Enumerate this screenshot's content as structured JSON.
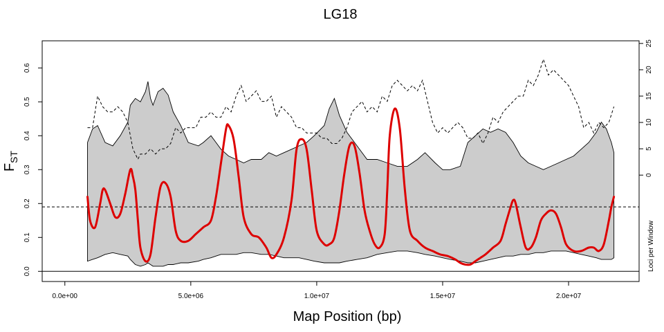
{
  "chart_data": {
    "type": "line",
    "title": "LG18",
    "xlabel": "Map Position (bp)",
    "ylabel": "F",
    "ylabel_subscript": "ST",
    "y2label": "Loci per Window",
    "xlim": [
      -900000,
      22800000
    ],
    "ylim": [
      -0.03,
      0.68
    ],
    "y2lim": [
      -20.2,
      25.5
    ],
    "x_ticks": [
      0,
      5000000,
      10000000,
      15000000,
      20000000
    ],
    "x_tick_labels": [
      "0.0e+00",
      "5.0e+06",
      "1.0e+07",
      "1.5e+07",
      "2.0e+07"
    ],
    "y_ticks": [
      0,
      0.1,
      0.2,
      0.3,
      0.4,
      0.5,
      0.6
    ],
    "y_tick_labels": [
      "0.0",
      "0.1",
      "0.2",
      "0.3",
      "0.4",
      "0.5",
      "0.6"
    ],
    "y2_ticks": [
      0,
      5,
      10,
      15,
      20,
      25
    ],
    "y2_tick_labels": [
      "0",
      "5",
      "10",
      "15",
      "20",
      "25"
    ],
    "reference_lines": [
      {
        "axis": "y",
        "value": 0.19,
        "style": "dashed"
      },
      {
        "axis": "y",
        "value": 0,
        "style": "solid"
      }
    ],
    "grid": false,
    "series": [
      {
        "role": "confidence_band",
        "color": "#cccccc",
        "x": [
          900000,
          1100000,
          1300000,
          1600000,
          1900000,
          2200000,
          2500000,
          2600000,
          2800000,
          3000000,
          3200000,
          3300000,
          3400000,
          3500000,
          3700000,
          3900000,
          4100000,
          4300000,
          4600000,
          4900000,
          5300000,
          5500000,
          5800000,
          6000000,
          6200000,
          6500000,
          6800000,
          7100000,
          7400000,
          7800000,
          8100000,
          8400000,
          8700000,
          9000000,
          9300000,
          9600000,
          9900000,
          10300000,
          10500000,
          10700000,
          10900000,
          11200000,
          11600000,
          12000000,
          12400000,
          12800000,
          13200000,
          13600000,
          14000000,
          14300000,
          14700000,
          15000000,
          15300000,
          15700000,
          16000000,
          16300000,
          16600000,
          16900000,
          17200000,
          17500000,
          17800000,
          18100000,
          18400000,
          18700000,
          19000000,
          19300000,
          19600000,
          19900000,
          20200000,
          20500000,
          20800000,
          21100000,
          21300000,
          21500000,
          21700000,
          21800000
        ],
        "upper": [
          0.38,
          0.42,
          0.43,
          0.38,
          0.37,
          0.4,
          0.44,
          0.49,
          0.51,
          0.5,
          0.53,
          0.56,
          0.51,
          0.49,
          0.53,
          0.54,
          0.52,
          0.47,
          0.43,
          0.38,
          0.37,
          0.38,
          0.4,
          0.38,
          0.36,
          0.34,
          0.33,
          0.32,
          0.33,
          0.33,
          0.35,
          0.34,
          0.35,
          0.36,
          0.37,
          0.38,
          0.4,
          0.43,
          0.48,
          0.51,
          0.46,
          0.41,
          0.37,
          0.33,
          0.33,
          0.32,
          0.31,
          0.31,
          0.33,
          0.35,
          0.32,
          0.3,
          0.3,
          0.31,
          0.38,
          0.4,
          0.42,
          0.41,
          0.42,
          0.41,
          0.38,
          0.34,
          0.32,
          0.31,
          0.3,
          0.31,
          0.32,
          0.33,
          0.34,
          0.36,
          0.38,
          0.41,
          0.44,
          0.42,
          0.38,
          0.35
        ],
        "lower": [
          0.03,
          0.035,
          0.04,
          0.05,
          0.055,
          0.05,
          0.045,
          0.035,
          0.02,
          0.015,
          0.02,
          0.025,
          0.02,
          0.015,
          0.015,
          0.015,
          0.02,
          0.02,
          0.025,
          0.025,
          0.03,
          0.035,
          0.04,
          0.045,
          0.05,
          0.05,
          0.05,
          0.055,
          0.055,
          0.05,
          0.05,
          0.045,
          0.04,
          0.04,
          0.04,
          0.035,
          0.03,
          0.025,
          0.025,
          0.025,
          0.025,
          0.03,
          0.035,
          0.04,
          0.05,
          0.055,
          0.06,
          0.06,
          0.055,
          0.05,
          0.045,
          0.04,
          0.035,
          0.03,
          0.025,
          0.025,
          0.03,
          0.035,
          0.04,
          0.045,
          0.045,
          0.05,
          0.05,
          0.055,
          0.055,
          0.06,
          0.06,
          0.06,
          0.055,
          0.05,
          0.045,
          0.04,
          0.035,
          0.035,
          0.035,
          0.04
        ]
      },
      {
        "role": "fst",
        "color": "#dd0000",
        "x": [
          900000,
          1000000,
          1200000,
          1400000,
          1500000,
          1600000,
          1800000,
          2000000,
          2200000,
          2400000,
          2600000,
          2700000,
          2800000,
          2900000,
          3000000,
          3200000,
          3400000,
          3600000,
          3800000,
          4000000,
          4200000,
          4400000,
          4600000,
          4900000,
          5200000,
          5500000,
          5800000,
          6000000,
          6200000,
          6400000,
          6500000,
          6700000,
          6900000,
          7100000,
          7400000,
          7700000,
          8000000,
          8200000,
          8400000,
          8700000,
          9000000,
          9200000,
          9400000,
          9600000,
          9800000,
          10000000,
          10300000,
          10500000,
          10700000,
          10900000,
          11100000,
          11300000,
          11500000,
          11700000,
          11900000,
          12100000,
          12300000,
          12500000,
          12700000,
          12800000,
          12900000,
          13100000,
          13300000,
          13500000,
          13700000,
          14000000,
          14300000,
          14600000,
          14900000,
          15200000,
          15500000,
          15700000,
          15900000,
          16100000,
          16300000,
          16500000,
          16700000,
          17000000,
          17300000,
          17500000,
          17700000,
          17800000,
          17900000,
          18100000,
          18300000,
          18500000,
          18700000,
          18900000,
          19100000,
          19300000,
          19500000,
          19700000,
          19900000,
          20200000,
          20500000,
          20800000,
          21000000,
          21200000,
          21400000,
          21600000,
          21700000,
          21800000
        ],
        "y": [
          0.22,
          0.15,
          0.13,
          0.2,
          0.24,
          0.24,
          0.2,
          0.16,
          0.17,
          0.23,
          0.3,
          0.28,
          0.24,
          0.15,
          0.07,
          0.03,
          0.05,
          0.16,
          0.25,
          0.26,
          0.22,
          0.12,
          0.09,
          0.09,
          0.11,
          0.13,
          0.15,
          0.22,
          0.32,
          0.42,
          0.43,
          0.39,
          0.28,
          0.16,
          0.11,
          0.1,
          0.07,
          0.04,
          0.05,
          0.1,
          0.21,
          0.36,
          0.39,
          0.36,
          0.24,
          0.12,
          0.08,
          0.08,
          0.1,
          0.18,
          0.29,
          0.37,
          0.37,
          0.29,
          0.18,
          0.12,
          0.08,
          0.07,
          0.11,
          0.24,
          0.4,
          0.48,
          0.42,
          0.24,
          0.12,
          0.09,
          0.07,
          0.06,
          0.05,
          0.045,
          0.035,
          0.025,
          0.02,
          0.02,
          0.03,
          0.04,
          0.05,
          0.07,
          0.09,
          0.14,
          0.19,
          0.21,
          0.2,
          0.13,
          0.07,
          0.07,
          0.1,
          0.15,
          0.17,
          0.18,
          0.17,
          0.13,
          0.08,
          0.06,
          0.06,
          0.07,
          0.07,
          0.06,
          0.08,
          0.15,
          0.19,
          0.22
        ]
      },
      {
        "role": "loci_per_window",
        "color": "#000000",
        "style": "dashed",
        "x": [
          900000,
          1100000,
          1300000,
          1500000,
          1700000,
          1900000,
          2100000,
          2300000,
          2500000,
          2700000,
          2900000,
          3000000,
          3200000,
          3400000,
          3600000,
          3800000,
          4000000,
          4200000,
          4400000,
          4600000,
          4800000,
          5000000,
          5200000,
          5400000,
          5600000,
          5800000,
          6000000,
          6200000,
          6400000,
          6600000,
          6800000,
          7000000,
          7200000,
          7400000,
          7600000,
          7800000,
          8000000,
          8200000,
          8400000,
          8600000,
          8800000,
          9000000,
          9200000,
          9400000,
          9600000,
          9800000,
          10000000,
          10200000,
          10400000,
          10600000,
          10800000,
          11000000,
          11200000,
          11400000,
          11600000,
          11800000,
          12000000,
          12200000,
          12400000,
          12600000,
          12800000,
          13000000,
          13200000,
          13400000,
          13600000,
          13800000,
          14000000,
          14200000,
          14400000,
          14600000,
          14800000,
          15000000,
          15200000,
          15400000,
          15600000,
          15800000,
          16000000,
          16200000,
          16400000,
          16600000,
          16800000,
          17000000,
          17200000,
          17400000,
          17600000,
          17800000,
          18000000,
          18200000,
          18400000,
          18600000,
          18800000,
          19000000,
          19200000,
          19400000,
          19600000,
          19800000,
          20000000,
          20200000,
          20400000,
          20600000,
          20800000,
          21000000,
          21200000,
          21400000,
          21600000,
          21800000
        ],
        "y": [
          9,
          9,
          15,
          13,
          12,
          12,
          13,
          12,
          10,
          5,
          3,
          4,
          4,
          5,
          4,
          5,
          5,
          6,
          9,
          8,
          9,
          9,
          9,
          11,
          11,
          12,
          11,
          11,
          13,
          12,
          15,
          17,
          14,
          15,
          16,
          14,
          14,
          15,
          11,
          13,
          12,
          11,
          9,
          9,
          8,
          8,
          8,
          7,
          7,
          6,
          6,
          7,
          9,
          12,
          13,
          14,
          12,
          13,
          12,
          15,
          14,
          17,
          18,
          17,
          16,
          17,
          16,
          18,
          14,
          10,
          8,
          9,
          8,
          9,
          10,
          9,
          7,
          7,
          8,
          6,
          8,
          11,
          10,
          12,
          13,
          14,
          15,
          15,
          18,
          17,
          19,
          22,
          19,
          20,
          19,
          18,
          17,
          15,
          13,
          9,
          10,
          8,
          10,
          9,
          10,
          13
        ]
      }
    ]
  }
}
